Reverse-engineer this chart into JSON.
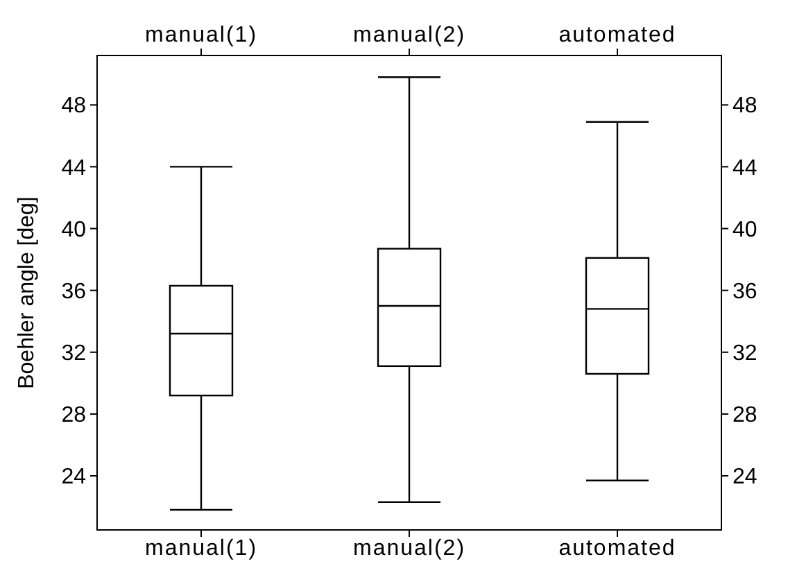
{
  "chart_data": {
    "type": "box",
    "ylabel": "Boehler angle [deg]",
    "categories": [
      "manual(1)",
      "manual(2)",
      "automated"
    ],
    "boxes": [
      {
        "low": 21.8,
        "q1": 29.2,
        "median": 33.2,
        "q3": 36.3,
        "high": 44
      },
      {
        "low": 22.3,
        "q1": 31.1,
        "median": 35,
        "q3": 38.7,
        "high": 49.8
      },
      {
        "low": 23.7,
        "q1": 30.6,
        "median": 34.8,
        "q3": 38.1,
        "high": 46.9
      }
    ],
    "color": "#000000",
    "ylim": [
      20.5,
      51.2
    ],
    "yticks": [
      24,
      28,
      32,
      36,
      40,
      44,
      48
    ],
    "y2lim": [
      20.5,
      51.2
    ],
    "y2ticks": [
      24,
      28,
      32,
      36,
      40,
      44,
      48
    ],
    "grid": false
  }
}
